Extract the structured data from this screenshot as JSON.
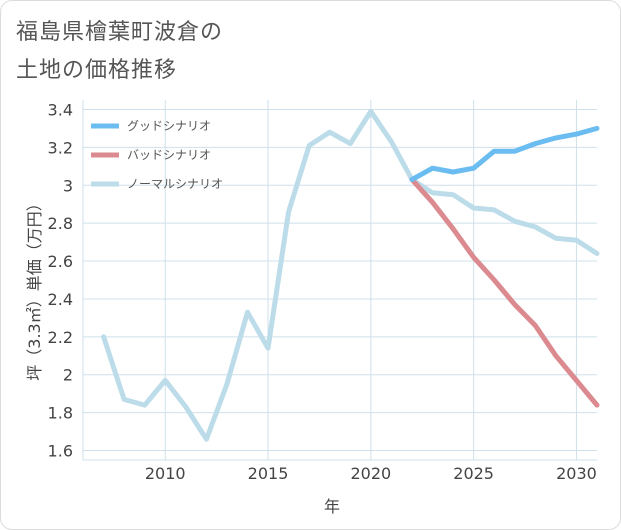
{
  "title_lines": [
    "福島県檜葉町波倉の",
    "土地の価格推移"
  ],
  "chart_data": {
    "type": "line",
    "xlabel": "年",
    "ylabel": "坪（3.3㎡）単価（万円）",
    "xlim": [
      2006,
      2031
    ],
    "ylim": [
      1.55,
      3.45
    ],
    "xticks": [
      2010,
      2015,
      2020,
      2025,
      2030
    ],
    "yticks": [
      1.6,
      1.8,
      2,
      2.2,
      2.4,
      2.6,
      2.8,
      3,
      3.2,
      3.4
    ],
    "ytick_labels": [
      "1.6",
      "1.8",
      "2",
      "2.2",
      "2.4",
      "2.6",
      "2.8",
      "3",
      "3.2",
      "3.4"
    ],
    "grid": true,
    "legend_position": "top-left",
    "series": [
      {
        "name": "グッドシナリオ",
        "color": "#6bbcf0",
        "x": [
          2022,
          2023,
          2024,
          2025,
          2026,
          2027,
          2028,
          2029,
          2030,
          2031
        ],
        "y": [
          3.03,
          3.09,
          3.07,
          3.09,
          3.18,
          3.18,
          3.22,
          3.25,
          3.27,
          3.3
        ]
      },
      {
        "name": "バッドシナリオ",
        "color": "#db8a8f",
        "x": [
          2022,
          2023,
          2024,
          2025,
          2026,
          2027,
          2028,
          2029,
          2030,
          2031
        ],
        "y": [
          3.03,
          2.91,
          2.77,
          2.62,
          2.5,
          2.37,
          2.26,
          2.1,
          1.97,
          1.84
        ]
      },
      {
        "name": "ノーマルシナリオ",
        "color": "#bcdcea",
        "x": [
          2007,
          2008,
          2009,
          2010,
          2011,
          2012,
          2013,
          2014,
          2015,
          2016,
          2017,
          2018,
          2019,
          2020,
          2021,
          2022,
          2023,
          2024,
          2025,
          2026,
          2027,
          2028,
          2029,
          2030,
          2031
        ],
        "y": [
          2.2,
          1.87,
          1.84,
          1.97,
          1.83,
          1.66,
          1.95,
          2.33,
          2.14,
          2.86,
          3.21,
          3.28,
          3.22,
          3.39,
          3.23,
          3.03,
          2.96,
          2.95,
          2.88,
          2.87,
          2.81,
          2.78,
          2.72,
          2.71,
          2.64
        ]
      }
    ]
  }
}
